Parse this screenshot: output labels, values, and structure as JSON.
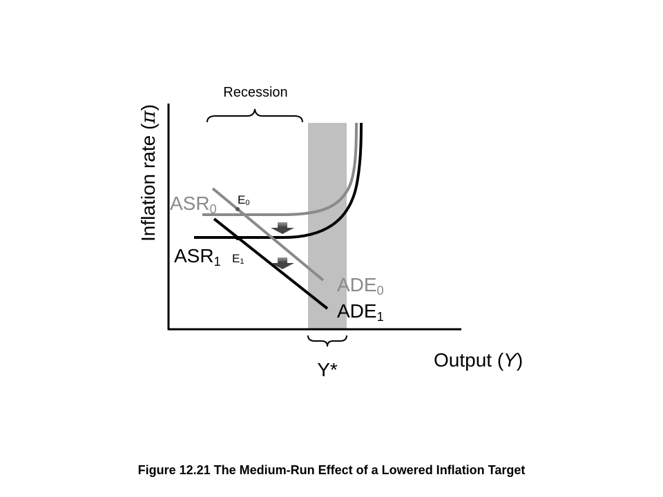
{
  "diagram": {
    "axis_y_label": "Inflation rate (",
    "axis_y_symbol": "π",
    "axis_y_close": ")",
    "axis_x_label": "Output (",
    "axis_x_symbol": "Y",
    "axis_x_close": ")",
    "recession_label": "Recession",
    "potential_output_label": "Y*",
    "curves": {
      "asr0": {
        "name": "ASR",
        "sub": "0"
      },
      "asr1": {
        "name": "ASR",
        "sub": "1"
      },
      "ade0": {
        "name": "ADE",
        "sub": "0"
      },
      "ade1": {
        "name": "ADE",
        "sub": "1"
      }
    },
    "points": {
      "e0": {
        "name": "E",
        "sub": "0"
      },
      "e1": {
        "name": "E",
        "sub": "1"
      }
    },
    "colors": {
      "old_curves": "#8a8a8a",
      "new_curves": "#000000",
      "potential_band": "#c0c0c0",
      "arrow": "#707070"
    }
  },
  "caption": "Figure 12.21 The Medium-Run Effect of a Lowered Inflation Target"
}
